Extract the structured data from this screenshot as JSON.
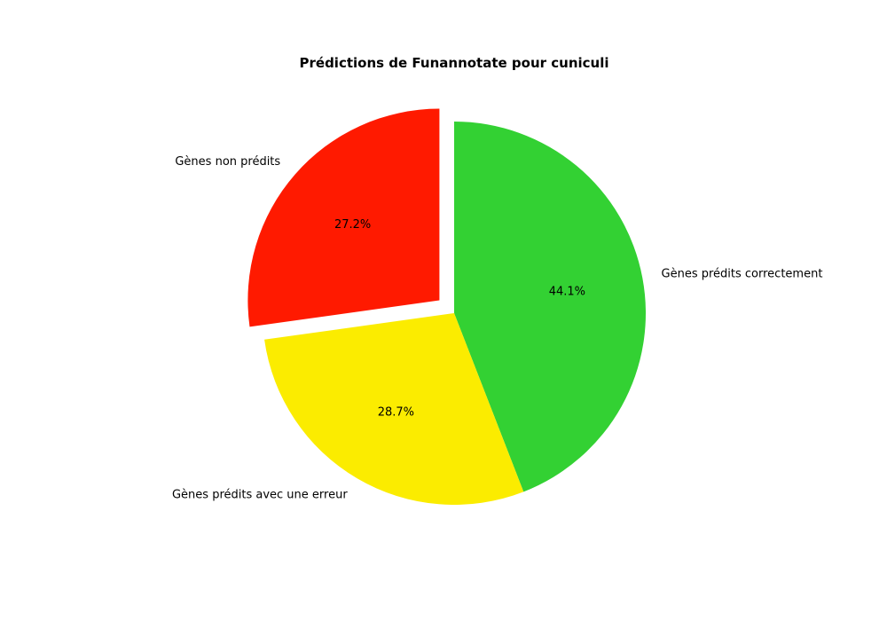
{
  "chart_data": {
    "type": "pie",
    "title": "Prédictions de Funannotate pour cuniculi",
    "slices": [
      {
        "label": "Gènes prédits correctement",
        "value": 44.1,
        "pct_label": "44.1%",
        "color": "#33d133",
        "exploded": false
      },
      {
        "label": "Gènes prédits avec une erreur",
        "value": 28.7,
        "pct_label": "28.7%",
        "color": "#fbec00",
        "exploded": false
      },
      {
        "label": "Gènes non prédits",
        "value": 27.2,
        "pct_label": "27.2%",
        "color": "#ff1a00",
        "exploded": true
      }
    ],
    "start_angle_deg": 90,
    "direction": "clockwise",
    "legend": "none"
  }
}
